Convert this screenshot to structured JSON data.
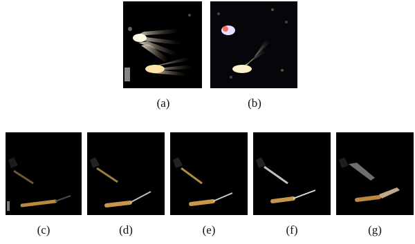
{
  "figure": {
    "top_row": [
      {
        "id": "a",
        "label": "(a)"
      },
      {
        "id": "b",
        "label": "(b)"
      }
    ],
    "bottom_row": [
      {
        "id": "c",
        "label": "(c)"
      },
      {
        "id": "d",
        "label": "(d)"
      },
      {
        "id": "e",
        "label": "(e)"
      },
      {
        "id": "f",
        "label": "(f)"
      },
      {
        "id": "g",
        "label": "(g)"
      }
    ]
  },
  "colors": {
    "background": "#000000",
    "motion_highlight": "#f5d7a0",
    "arm_color": "#c89a55"
  }
}
